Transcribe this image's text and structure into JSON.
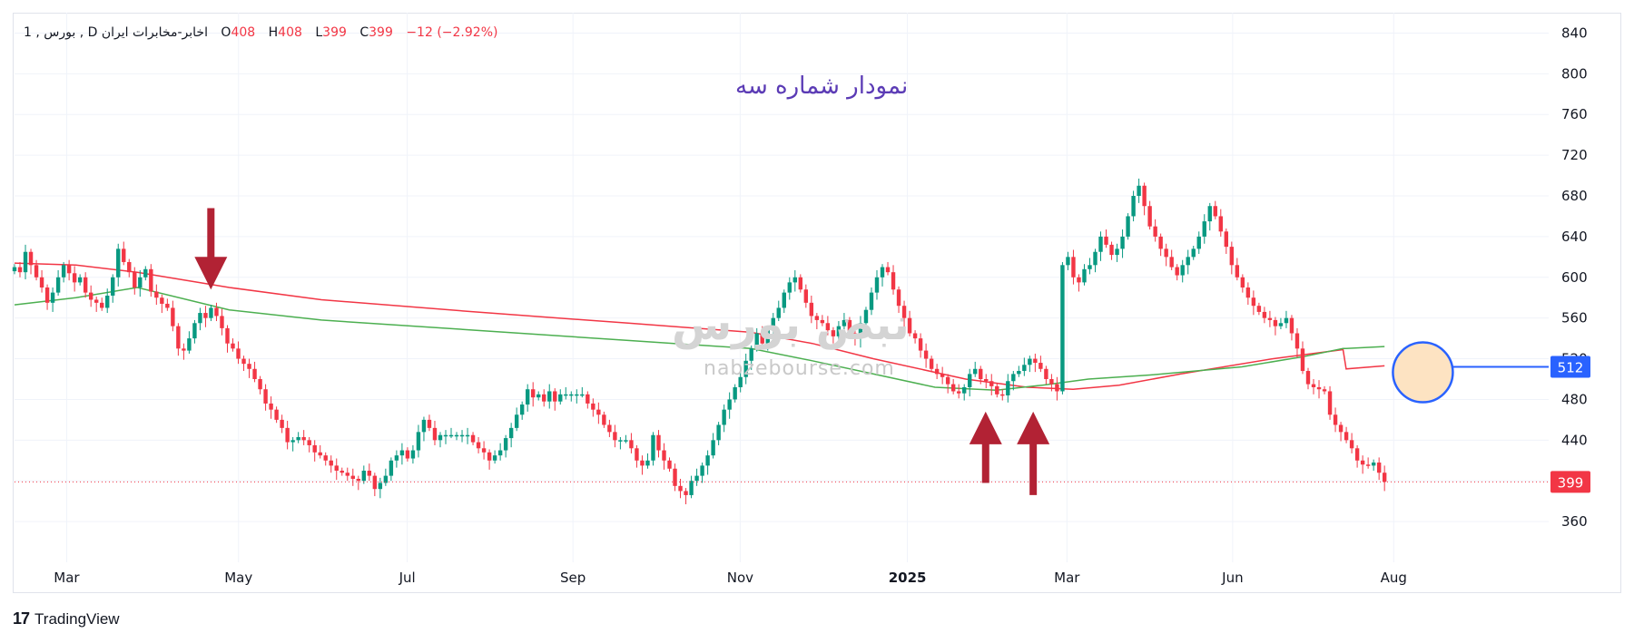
{
  "legend": {
    "symbol": "اخابر-مخابرات ایران",
    "interval": "D",
    "exchange": "بورس",
    "separator": "1",
    "open_label": "O",
    "open": "408",
    "high_label": "H",
    "high": "408",
    "low_label": "L",
    "low": "399",
    "close_label": "C",
    "close": "399",
    "change": "−12 (−2.92%)"
  },
  "annotation_title": "نمودار شماره سه",
  "watermark": {
    "persian": "نبض بورس",
    "latin": "nabzebourse.com"
  },
  "brand": {
    "logo": "17",
    "name": "TradingView"
  },
  "colors": {
    "up": "#089981",
    "down": "#f23645",
    "upper_band": "#f23645",
    "lower_band": "#4caf50",
    "arrow": "#b22234",
    "circle_fill": "#fde3c2",
    "circle_stroke": "#2962ff",
    "badge_blue": "#2962ff",
    "badge_red": "#f23645"
  },
  "chart_data": {
    "type": "candlestick",
    "y_range": [
      320,
      860
    ],
    "y_ticks": [
      "840",
      "800",
      "760",
      "720",
      "680",
      "640",
      "600",
      "560",
      "520",
      "480",
      "440",
      "400",
      "360"
    ],
    "x_labels": [
      {
        "label": "Mar",
        "x": 0.034
      },
      {
        "label": "May",
        "x": 0.146
      },
      {
        "label": "Jul",
        "x": 0.256
      },
      {
        "label": "Sep",
        "x": 0.364
      },
      {
        "label": "Nov",
        "x": 0.473
      },
      {
        "label": "2025",
        "x": 0.582,
        "bold": true
      },
      {
        "label": "Mar",
        "x": 0.686
      },
      {
        "label": "Jun",
        "x": 0.794
      },
      {
        "label": "Aug",
        "x": 0.899
      }
    ],
    "price_badges": [
      {
        "label": "512",
        "value": 512,
        "kind": "blue"
      },
      {
        "label": "399",
        "value": 399,
        "kind": "red"
      }
    ],
    "closes": [
      610,
      605,
      625,
      612,
      600,
      590,
      575,
      585,
      600,
      612,
      604,
      595,
      600,
      585,
      578,
      575,
      570,
      582,
      600,
      628,
      615,
      605,
      590,
      600,
      608,
      586,
      580,
      574,
      570,
      552,
      530,
      528,
      540,
      555,
      565,
      560,
      570,
      562,
      550,
      535,
      530,
      520,
      515,
      510,
      500,
      490,
      476,
      470,
      460,
      452,
      438,
      440,
      443,
      440,
      435,
      428,
      425,
      420,
      415,
      410,
      408,
      405,
      402,
      400,
      410,
      405,
      392,
      398,
      405,
      420,
      425,
      430,
      422,
      430,
      448,
      460,
      452,
      440,
      445,
      445,
      445,
      445,
      445,
      445,
      438,
      432,
      428,
      420,
      425,
      430,
      442,
      452,
      465,
      475,
      490,
      482,
      485,
      478,
      488,
      478,
      485,
      485,
      485,
      485,
      485,
      476,
      470,
      465,
      455,
      448,
      440,
      440,
      440,
      432,
      420,
      415,
      420,
      445,
      430,
      420,
      412,
      395,
      390,
      386,
      400,
      405,
      415,
      425,
      440,
      455,
      470,
      480,
      492,
      502,
      518,
      530,
      545,
      535,
      548,
      560,
      570,
      585,
      595,
      600,
      588,
      575,
      562,
      558,
      555,
      548,
      542,
      552,
      558,
      545,
      540,
      555,
      568,
      585,
      600,
      610,
      605,
      588,
      572,
      560,
      545,
      540,
      528,
      520,
      510,
      505,
      502,
      495,
      488,
      486,
      492,
      505,
      510,
      500,
      498,
      493,
      485,
      484,
      498,
      505,
      508,
      514,
      520,
      516,
      510,
      500,
      495,
      488,
      612,
      620,
      600,
      595,
      608,
      612,
      625,
      640,
      632,
      622,
      628,
      640,
      660,
      680,
      690,
      670,
      650,
      640,
      628,
      620,
      610,
      602,
      612,
      620,
      628,
      640,
      655,
      670,
      660,
      645,
      630,
      612,
      600,
      590,
      580,
      572,
      566,
      560,
      558,
      552,
      555,
      560,
      545,
      530,
      508,
      495,
      492,
      490,
      488,
      465,
      455,
      448,
      440,
      432,
      420,
      416,
      415,
      418,
      408,
      399
    ],
    "upper_band": [
      [
        0,
        614
      ],
      [
        0.04,
        612
      ],
      [
        0.08,
        605
      ],
      [
        0.14,
        590
      ],
      [
        0.2,
        578
      ],
      [
        0.3,
        566
      ],
      [
        0.4,
        555
      ],
      [
        0.48,
        546
      ],
      [
        0.52,
        535
      ],
      [
        0.56,
        520
      ],
      [
        0.62,
        500
      ],
      [
        0.66,
        492
      ],
      [
        0.69,
        490
      ],
      [
        0.72,
        494
      ],
      [
        0.76,
        505
      ],
      [
        0.82,
        520
      ],
      [
        0.866,
        529
      ],
      [
        0.868,
        510
      ],
      [
        0.893,
        513
      ]
    ],
    "lower_band": [
      [
        0,
        573
      ],
      [
        0.04,
        580
      ],
      [
        0.08,
        590
      ],
      [
        0.14,
        568
      ],
      [
        0.2,
        558
      ],
      [
        0.3,
        548
      ],
      [
        0.4,
        538
      ],
      [
        0.48,
        530
      ],
      [
        0.52,
        518
      ],
      [
        0.56,
        505
      ],
      [
        0.6,
        492
      ],
      [
        0.64,
        489
      ],
      [
        0.67,
        494
      ],
      [
        0.7,
        500
      ],
      [
        0.74,
        504
      ],
      [
        0.8,
        512
      ],
      [
        0.84,
        522
      ],
      [
        0.866,
        530
      ],
      [
        0.868,
        530
      ],
      [
        0.893,
        532
      ]
    ],
    "arrows": [
      {
        "dir": "down",
        "x": 0.128,
        "tip": 588,
        "tail": 668
      },
      {
        "dir": "up",
        "x": 0.633,
        "tip": 468,
        "tail": 398
      },
      {
        "dir": "up",
        "x": 0.664,
        "tip": 468,
        "tail": 386
      }
    ],
    "highlight_circle": {
      "x": 0.918,
      "value": 512
    }
  }
}
